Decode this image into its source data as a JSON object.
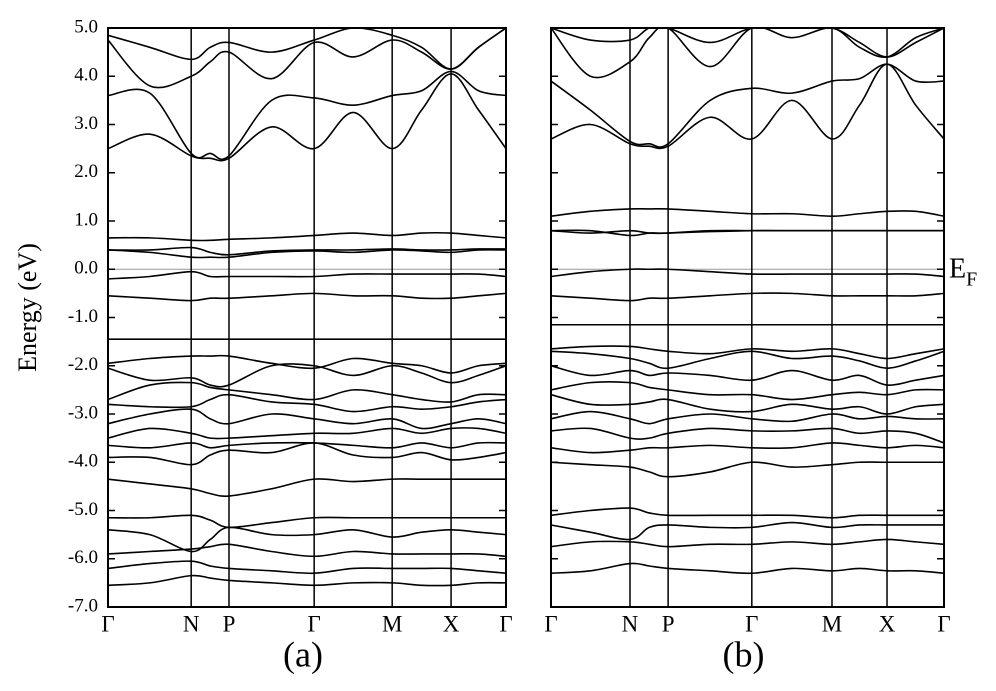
{
  "chart_data": [
    {
      "type": "line",
      "label": "(a)",
      "ylabel": "Energy (eV)",
      "color": "#000000",
      "fermi_level": 0,
      "xlim": [
        0,
        1
      ],
      "ylim": [
        -7,
        5
      ],
      "yticks": [
        {
          "value": 5,
          "label": "5.0"
        },
        {
          "value": 4,
          "label": "4.0"
        },
        {
          "value": 3,
          "label": "3.0"
        },
        {
          "value": 2,
          "label": "2.0"
        },
        {
          "value": 1,
          "label": "1.0"
        },
        {
          "value": 0,
          "label": "0.0"
        },
        {
          "value": -1,
          "label": "-1.0"
        },
        {
          "value": -2,
          "label": "-2.0"
        },
        {
          "value": -3,
          "label": "-3.0"
        },
        {
          "value": -4,
          "label": "-4.0"
        },
        {
          "value": -5,
          "label": "-5.0"
        },
        {
          "value": -6,
          "label": "-6.0"
        },
        {
          "value": -7,
          "label": "-7.0"
        }
      ],
      "xticks": [
        {
          "value": 0,
          "label": "Γ"
        },
        {
          "value": 0.209,
          "label": "N"
        },
        {
          "value": 0.304,
          "label": "P"
        },
        {
          "value": 0.518,
          "label": "Γ"
        },
        {
          "value": 0.714,
          "label": "M"
        },
        {
          "value": 0.862,
          "label": "X"
        },
        {
          "value": 1,
          "label": "Γ"
        }
      ],
      "x": [
        0,
        0.105,
        0.209,
        0.257,
        0.304,
        0.411,
        0.518,
        0.616,
        0.714,
        0.788,
        0.862,
        0.931,
        1
      ],
      "series": [
        {
          "values": [
            2.5,
            2.8,
            2.35,
            2.3,
            2.3,
            2.95,
            2.5,
            3.25,
            2.5,
            3.3,
            4.05,
            3.3,
            2.5
          ]
        },
        {
          "values": [
            3.6,
            3.65,
            2.4,
            2.4,
            2.35,
            3.5,
            3.55,
            3.4,
            3.6,
            3.7,
            4.1,
            3.7,
            3.6
          ]
        },
        {
          "values": [
            4.75,
            3.8,
            4.0,
            4.3,
            4.5,
            3.95,
            4.7,
            4.4,
            4.75,
            4.5,
            4.15,
            4.6,
            5.0
          ]
        },
        {
          "values": [
            4.85,
            4.6,
            4.35,
            4.6,
            4.7,
            4.5,
            4.75,
            5.0,
            4.85,
            4.6,
            4.15,
            4.6,
            5.0
          ]
        },
        {
          "values": [
            0.65,
            0.65,
            0.6,
            0.6,
            0.62,
            0.65,
            0.7,
            0.75,
            0.7,
            0.75,
            0.75,
            0.7,
            0.65
          ]
        },
        {
          "values": [
            0.4,
            0.4,
            0.45,
            0.35,
            0.3,
            0.38,
            0.4,
            0.4,
            0.42,
            0.4,
            0.4,
            0.42,
            0.42
          ]
        },
        {
          "values": [
            0.4,
            0.35,
            0.25,
            0.25,
            0.25,
            0.35,
            0.38,
            0.35,
            0.4,
            0.38,
            0.35,
            0.4,
            0.4
          ]
        },
        {
          "values": [
            -0.2,
            -0.15,
            -0.05,
            -0.15,
            -0.15,
            -0.15,
            -0.15,
            -0.1,
            -0.1,
            -0.1,
            -0.1,
            -0.1,
            -0.15
          ]
        },
        {
          "values": [
            -0.55,
            -0.6,
            -0.65,
            -0.6,
            -0.6,
            -0.55,
            -0.5,
            -0.55,
            -0.55,
            -0.6,
            -0.6,
            -0.55,
            -0.5
          ]
        },
        {
          "values": [
            -1.45,
            -1.45,
            -1.45,
            -1.45,
            -1.45,
            -1.45,
            -1.45,
            -1.45,
            -1.45,
            -1.45,
            -1.45,
            -1.45,
            -1.45
          ]
        },
        {
          "values": [
            -1.95,
            -1.85,
            -1.8,
            -1.8,
            -1.8,
            -1.95,
            -2.05,
            -1.85,
            -1.95,
            -2.0,
            -2.15,
            -2.0,
            -1.95
          ]
        },
        {
          "values": [
            -2.05,
            -2.3,
            -2.25,
            -2.4,
            -2.4,
            -2.0,
            -2.0,
            -2.2,
            -2.0,
            -2.15,
            -2.35,
            -2.2,
            -2.0
          ]
        },
        {
          "values": [
            -2.7,
            -2.4,
            -2.35,
            -2.45,
            -2.5,
            -2.6,
            -2.7,
            -2.5,
            -2.6,
            -2.7,
            -2.75,
            -2.6,
            -2.6
          ]
        },
        {
          "values": [
            -2.8,
            -2.85,
            -2.85,
            -2.7,
            -2.6,
            -2.75,
            -2.8,
            -2.95,
            -2.85,
            -2.9,
            -2.85,
            -2.75,
            -2.7
          ]
        },
        {
          "values": [
            -3.2,
            -3.0,
            -2.9,
            -3.1,
            -3.2,
            -3.0,
            -3.1,
            -3.2,
            -3.1,
            -3.3,
            -3.2,
            -3.1,
            -3.2
          ]
        },
        {
          "values": [
            -3.5,
            -3.3,
            -3.4,
            -3.5,
            -3.5,
            -3.45,
            -3.4,
            -3.4,
            -3.3,
            -3.4,
            -3.3,
            -3.3,
            -3.4
          ]
        },
        {
          "values": [
            -3.65,
            -3.7,
            -3.6,
            -3.7,
            -3.65,
            -3.6,
            -3.6,
            -3.65,
            -3.7,
            -3.6,
            -3.7,
            -3.6,
            -3.6
          ]
        },
        {
          "values": [
            -3.9,
            -3.9,
            -4.05,
            -3.85,
            -3.75,
            -3.8,
            -3.6,
            -3.85,
            -3.9,
            -3.8,
            -3.95,
            -3.9,
            -3.8
          ]
        },
        {
          "values": [
            -4.35,
            -4.45,
            -4.55,
            -4.65,
            -4.7,
            -4.55,
            -4.35,
            -4.4,
            -4.35,
            -4.35,
            -4.35,
            -4.35,
            -4.35
          ]
        },
        {
          "values": [
            -5.15,
            -5.15,
            -5.1,
            -5.2,
            -5.35,
            -5.25,
            -5.15,
            -5.15,
            -5.15,
            -5.15,
            -5.15,
            -5.15,
            -5.15
          ]
        },
        {
          "values": [
            -5.4,
            -5.5,
            -5.85,
            -5.6,
            -5.35,
            -5.5,
            -5.5,
            -5.4,
            -5.55,
            -5.45,
            -5.4,
            -5.45,
            -5.5
          ]
        },
        {
          "values": [
            -5.9,
            -5.85,
            -5.8,
            -5.75,
            -5.7,
            -5.85,
            -5.95,
            -5.85,
            -5.9,
            -5.9,
            -5.9,
            -5.9,
            -5.95
          ]
        },
        {
          "values": [
            -6.2,
            -6.1,
            -6.05,
            -6.15,
            -6.2,
            -6.25,
            -6.3,
            -6.2,
            -6.2,
            -6.2,
            -6.2,
            -6.25,
            -6.3
          ]
        },
        {
          "values": [
            -6.55,
            -6.5,
            -6.35,
            -6.4,
            -6.45,
            -6.5,
            -6.55,
            -6.5,
            -6.5,
            -6.55,
            -6.55,
            -6.5,
            -6.5
          ]
        }
      ]
    },
    {
      "type": "line",
      "label": "(b)",
      "color": "#000000",
      "fermi_level": 0,
      "annotation": {
        "text": "E",
        "subscript": "F"
      },
      "xlim": [
        0,
        1
      ],
      "ylim": [
        -7,
        5
      ],
      "ytick_labels": false,
      "yticks": [
        5,
        4,
        3,
        2,
        1,
        0,
        -1,
        -2,
        -3,
        -4,
        -5,
        -6,
        -7
      ],
      "xticks": [
        {
          "value": 0,
          "label": "Γ"
        },
        {
          "value": 0.201,
          "label": "N"
        },
        {
          "value": 0.298,
          "label": "P"
        },
        {
          "value": 0.511,
          "label": "Γ"
        },
        {
          "value": 0.715,
          "label": "M"
        },
        {
          "value": 0.855,
          "label": "X"
        },
        {
          "value": 1,
          "label": "Γ"
        }
      ],
      "x": [
        0,
        0.1,
        0.201,
        0.25,
        0.298,
        0.405,
        0.511,
        0.613,
        0.715,
        0.785,
        0.855,
        0.928,
        1
      ],
      "series": [
        {
          "values": [
            2.7,
            3.0,
            2.6,
            2.55,
            2.55,
            3.15,
            2.7,
            3.5,
            2.7,
            3.4,
            4.25,
            3.4,
            2.7
          ]
        },
        {
          "values": [
            3.9,
            3.3,
            2.65,
            2.6,
            2.6,
            3.5,
            3.75,
            3.65,
            3.9,
            3.95,
            4.25,
            3.9,
            3.9
          ]
        },
        {
          "values": [
            5.0,
            4.0,
            4.3,
            4.8,
            5.0,
            4.2,
            5.0,
            4.8,
            5.0,
            4.6,
            4.4,
            4.8,
            5.0
          ]
        },
        {
          "values": [
            5.0,
            4.75,
            4.75,
            5.0,
            5.0,
            4.7,
            5.0,
            5.0,
            5.0,
            4.7,
            4.4,
            4.7,
            5.0
          ]
        },
        {
          "values": [
            1.1,
            1.2,
            1.25,
            1.25,
            1.25,
            1.2,
            1.15,
            1.15,
            1.1,
            1.15,
            1.2,
            1.2,
            1.1
          ]
        },
        {
          "values": [
            0.8,
            0.8,
            0.7,
            0.75,
            0.75,
            0.8,
            0.8,
            0.8,
            0.8,
            0.8,
            0.8,
            0.8,
            0.8
          ]
        },
        {
          "values": [
            0.8,
            0.75,
            0.8,
            0.75,
            0.75,
            0.78,
            0.8,
            0.8,
            0.8,
            0.8,
            0.8,
            0.8,
            0.8
          ]
        },
        {
          "values": [
            -0.15,
            -0.05,
            0.0,
            0.0,
            0.0,
            -0.05,
            -0.1,
            -0.1,
            -0.1,
            -0.1,
            -0.1,
            -0.1,
            -0.15
          ]
        },
        {
          "values": [
            -0.55,
            -0.6,
            -0.65,
            -0.6,
            -0.6,
            -0.55,
            -0.5,
            -0.5,
            -0.55,
            -0.55,
            -0.55,
            -0.55,
            -0.5
          ]
        },
        {
          "values": [
            -1.15,
            -1.15,
            -1.15,
            -1.15,
            -1.15,
            -1.15,
            -1.15,
            -1.15,
            -1.15,
            -1.15,
            -1.15,
            -1.15,
            -1.15
          ]
        },
        {
          "values": [
            -1.65,
            -1.6,
            -1.6,
            -1.65,
            -1.7,
            -1.75,
            -1.65,
            -1.7,
            -1.65,
            -1.75,
            -1.85,
            -1.75,
            -1.65
          ]
        },
        {
          "values": [
            -1.7,
            -1.75,
            -1.85,
            -1.95,
            -2.05,
            -1.85,
            -1.7,
            -1.85,
            -1.8,
            -1.9,
            -2.05,
            -1.9,
            -1.7
          ]
        },
        {
          "values": [
            -2.0,
            -2.2,
            -2.1,
            -2.2,
            -2.15,
            -2.2,
            -2.3,
            -2.1,
            -2.3,
            -2.2,
            -2.4,
            -2.3,
            -2.2
          ]
        },
        {
          "values": [
            -2.5,
            -2.35,
            -2.35,
            -2.45,
            -2.5,
            -2.6,
            -2.6,
            -2.7,
            -2.6,
            -2.55,
            -2.6,
            -2.5,
            -2.5
          ]
        },
        {
          "values": [
            -2.6,
            -2.8,
            -2.8,
            -2.75,
            -2.7,
            -2.9,
            -2.95,
            -2.8,
            -2.9,
            -2.85,
            -3.0,
            -2.85,
            -2.8
          ]
        },
        {
          "values": [
            -3.1,
            -2.95,
            -3.1,
            -3.2,
            -3.1,
            -3.0,
            -3.1,
            -3.15,
            -3.0,
            -3.1,
            -3.05,
            -3.1,
            -3.1
          ]
        },
        {
          "values": [
            -3.35,
            -3.3,
            -3.5,
            -3.5,
            -3.4,
            -3.3,
            -3.35,
            -3.35,
            -3.3,
            -3.4,
            -3.35,
            -3.4,
            -3.6
          ]
        },
        {
          "values": [
            -3.7,
            -3.8,
            -3.75,
            -3.7,
            -3.7,
            -3.65,
            -3.7,
            -3.7,
            -3.6,
            -3.65,
            -3.7,
            -3.65,
            -3.7
          ]
        },
        {
          "values": [
            -4.0,
            -4.05,
            -4.1,
            -4.2,
            -4.3,
            -4.2,
            -4.0,
            -4.1,
            -4.05,
            -4.0,
            -4.0,
            -4.0,
            -4.0
          ]
        },
        {
          "values": [
            -5.1,
            -5.0,
            -4.95,
            -5.05,
            -5.1,
            -5.1,
            -5.1,
            -5.1,
            -5.15,
            -5.1,
            -5.1,
            -5.1,
            -5.1
          ]
        },
        {
          "values": [
            -5.3,
            -5.45,
            -5.6,
            -5.35,
            -5.3,
            -5.35,
            -5.35,
            -5.25,
            -5.35,
            -5.3,
            -5.3,
            -5.3,
            -5.3
          ]
        },
        {
          "values": [
            -5.75,
            -5.65,
            -5.65,
            -5.7,
            -5.75,
            -5.7,
            -5.7,
            -5.65,
            -5.7,
            -5.65,
            -5.6,
            -5.65,
            -5.7
          ]
        },
        {
          "values": [
            -6.3,
            -6.25,
            -6.1,
            -6.15,
            -6.2,
            -6.25,
            -6.3,
            -6.2,
            -6.25,
            -6.2,
            -6.25,
            -6.25,
            -6.3
          ]
        }
      ]
    }
  ]
}
